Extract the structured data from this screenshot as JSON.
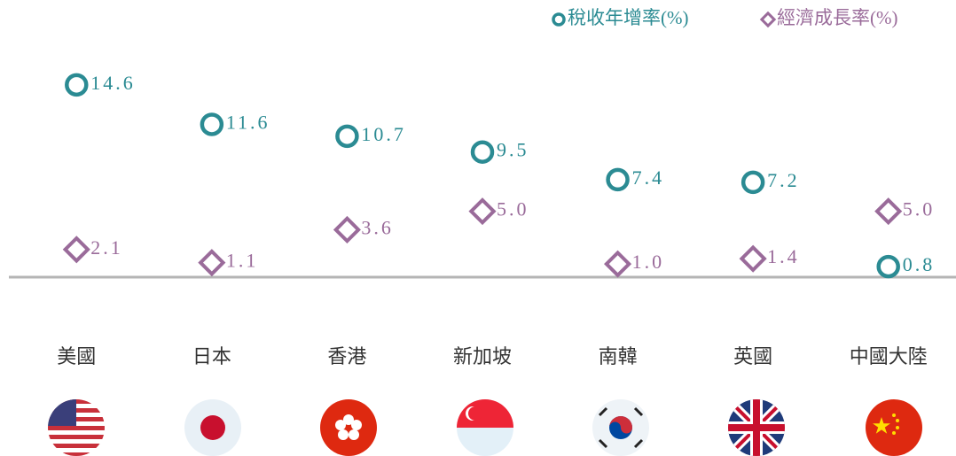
{
  "chart_data": {
    "type": "dot",
    "categories": [
      "美國",
      "日本",
      "香港",
      "新加坡",
      "南韓",
      "英國",
      "中國大陸"
    ],
    "series": [
      {
        "name": "稅收年增率(%)",
        "color": "#2b8b93",
        "marker": "circle",
        "values": [
          14.6,
          11.6,
          10.7,
          9.5,
          7.4,
          7.2,
          0.8
        ],
        "value_labels": [
          "14.6",
          "11.6",
          "10.7",
          "9.5",
          "7.4",
          "7.2",
          "0.8"
        ]
      },
      {
        "name": "經濟成長率(%)",
        "color": "#9a6b9a",
        "marker": "diamond",
        "values": [
          2.1,
          1.1,
          3.6,
          5.0,
          1.0,
          1.4,
          5.0
        ],
        "value_labels": [
          "2.1",
          "1.1",
          "3.6",
          "5.0",
          "1.0",
          "1.4",
          "5.0"
        ]
      }
    ],
    "ylim": [
      0,
      16
    ],
    "legend": "top-right"
  }
}
